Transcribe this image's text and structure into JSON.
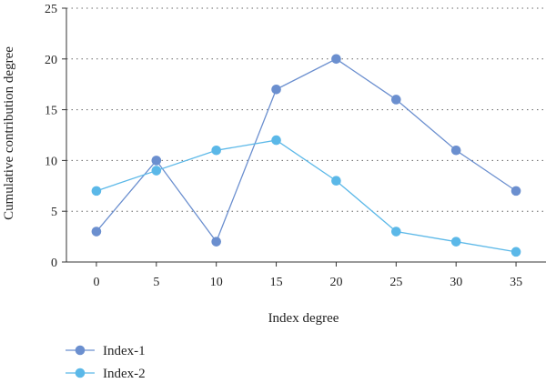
{
  "chart_data": {
    "type": "line",
    "xlabel": "Index degree",
    "ylabel": "Cumulative contribution degree",
    "x": [
      0,
      5,
      10,
      15,
      20,
      25,
      30,
      35
    ],
    "xticks": [
      "0",
      "5",
      "10",
      "15",
      "20",
      "25",
      "30",
      "35"
    ],
    "yticks": [
      "0",
      "5",
      "10",
      "15",
      "20",
      "25"
    ],
    "xlim": [
      -2.5,
      37.5
    ],
    "ylim": [
      0,
      25
    ],
    "grid": "horizontal-dotted",
    "legend_position": "bottom-left",
    "series": [
      {
        "name": "Index-1",
        "color": "#6b8fcf",
        "values": [
          3,
          10,
          2,
          17,
          20,
          16,
          11,
          7
        ]
      },
      {
        "name": "Index-2",
        "color": "#5bb8e8",
        "values": [
          7,
          9,
          11,
          12,
          8,
          3,
          2,
          1
        ]
      }
    ]
  }
}
